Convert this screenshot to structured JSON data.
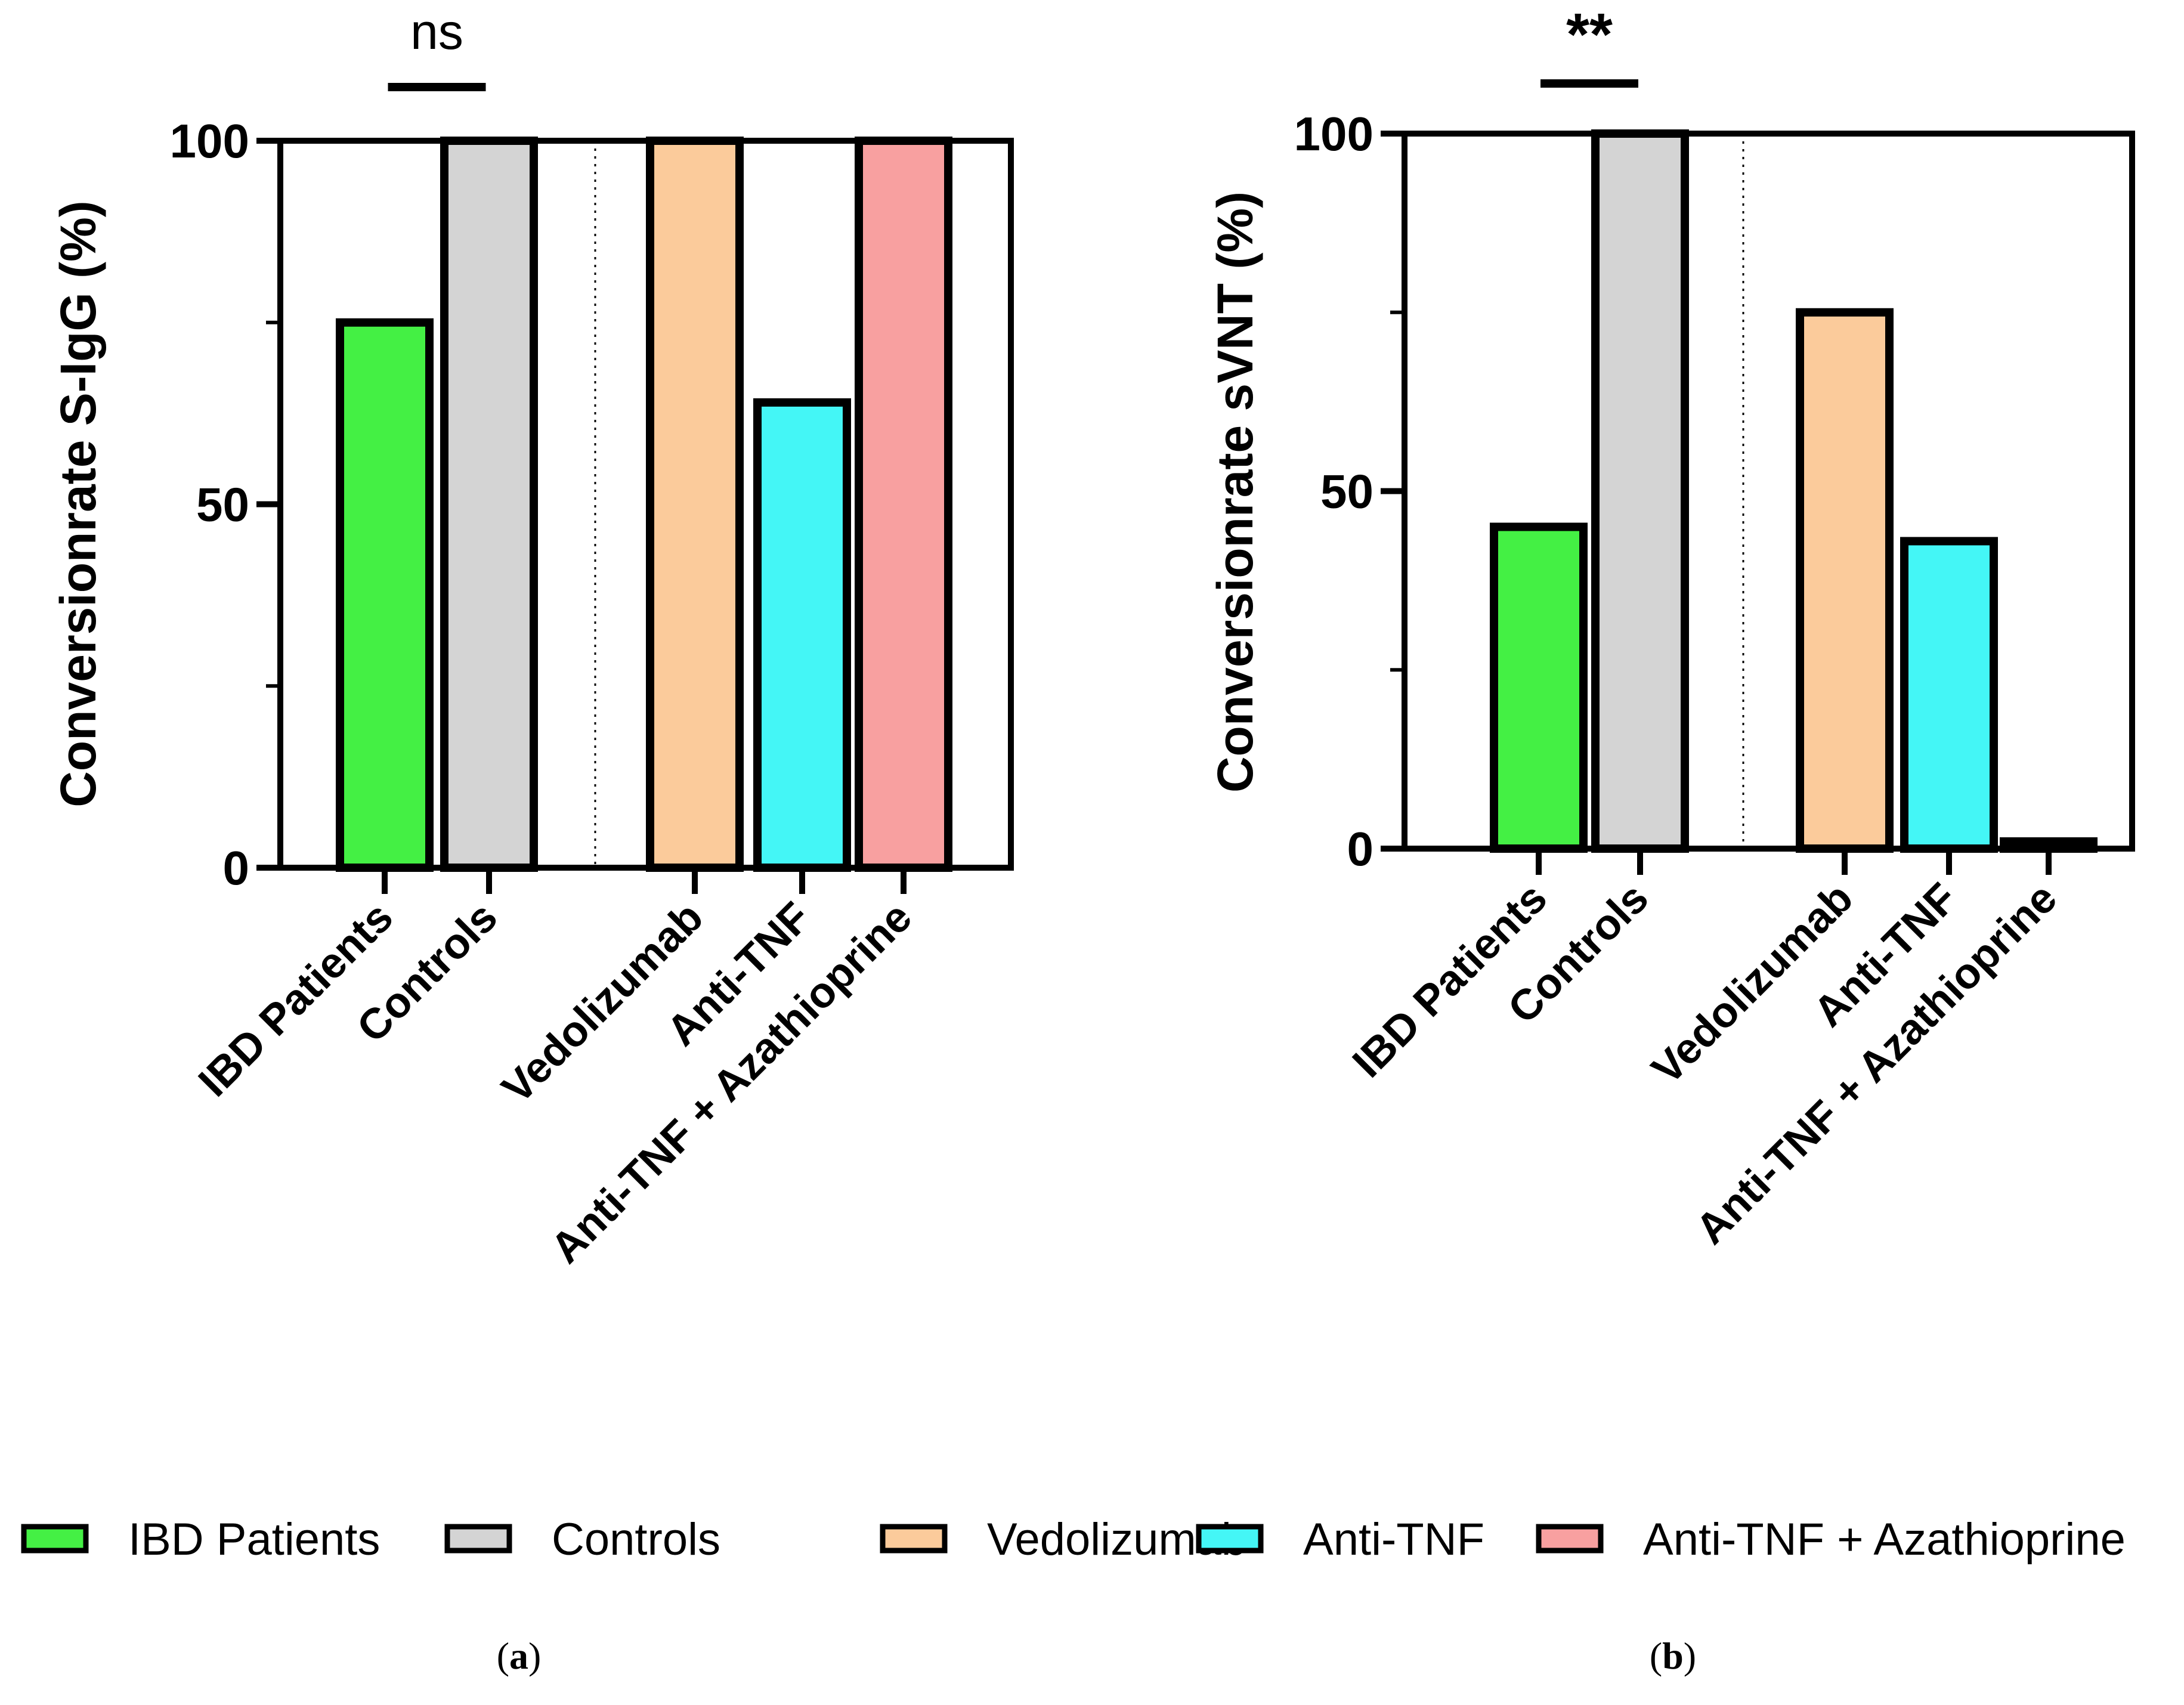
{
  "chart_data": [
    {
      "panel": "(a)",
      "panel_letter": "a",
      "type": "bar",
      "ylabel": "Conversionrate S-IgG (%)",
      "ylim": [
        0,
        100
      ],
      "yticks": [
        0,
        50,
        100
      ],
      "grid": false,
      "categories": [
        "IBD Patients",
        "Controls",
        "Vedolizumab",
        "Anti-TNF",
        "Anti-TNF + Azathioprine"
      ],
      "values": [
        75,
        100,
        100,
        64,
        100
      ],
      "colors": [
        "#44f044",
        "#d4d4d4",
        "#fbcb9b",
        "#44f6f6",
        "#f8a0a0"
      ],
      "significance": {
        "label": "ns",
        "between": [
          "IBD Patients",
          "Controls"
        ]
      }
    },
    {
      "panel": "(b)",
      "panel_letter": "b",
      "type": "bar",
      "ylabel": "Conversionrate sVNT (%)",
      "ylim": [
        0,
        100
      ],
      "yticks": [
        0,
        50,
        100
      ],
      "grid": false,
      "categories": [
        "IBD Patients",
        "Controls",
        "Vedolizumab",
        "Anti-TNF",
        "Anti-TNF + Azathioprine"
      ],
      "values": [
        45,
        100,
        75,
        43,
        1
      ],
      "colors": [
        "#44f044",
        "#d4d4d4",
        "#fbcb9b",
        "#44f6f6",
        "#f8a0a0"
      ],
      "significance": {
        "label": "**",
        "between": [
          "IBD Patients",
          "Controls"
        ]
      }
    }
  ],
  "legend": {
    "position": "bottom",
    "items": [
      {
        "label": "IBD Patients",
        "color": "#44f044"
      },
      {
        "label": "Controls",
        "color": "#d4d4d4"
      },
      {
        "label": "Vedolizumab",
        "color": "#fbcb9b"
      },
      {
        "label": "Anti-TNF",
        "color": "#44f6f6"
      },
      {
        "label": "Anti-TNF + Azathioprine",
        "color": "#f8a0a0"
      }
    ]
  }
}
